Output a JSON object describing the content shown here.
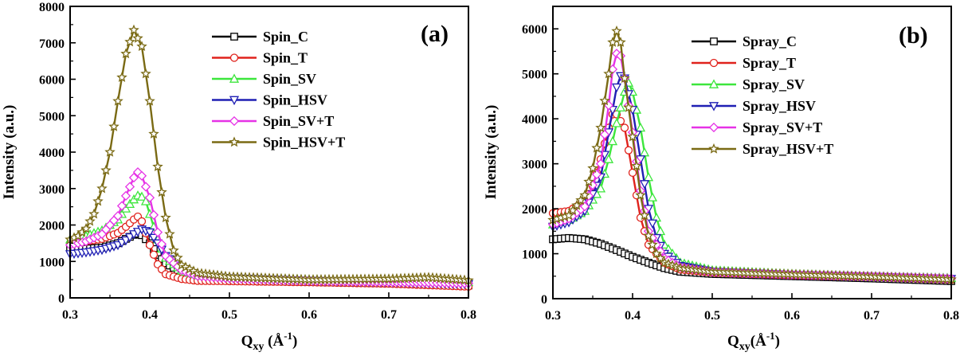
{
  "chart_data": [
    {
      "type": "line",
      "panel_label": "(a)",
      "xlabel_main": "Q",
      "xlabel_sub": "xy",
      "xlabel_unit_open": " (Å",
      "xlabel_unit_sup": "-1",
      "xlabel_unit_close": ")",
      "ylabel": "Intensity (a.u.)",
      "xlim": [
        0.3,
        0.8
      ],
      "ylim": [
        0,
        8000
      ],
      "xticks": [
        "0.3",
        "0.4",
        "0.5",
        "0.6",
        "0.7",
        "0.8"
      ],
      "yticks": [
        "0",
        "1000",
        "2000",
        "3000",
        "4000",
        "5000",
        "6000",
        "7000",
        "8000"
      ],
      "legend_position": "top-right",
      "grid": false,
      "series": [
        {
          "name": "Spin_C",
          "color": "#000000",
          "marker": "square",
          "points": [
            [
              0.3,
              1350
            ],
            [
              0.32,
              1350
            ],
            [
              0.34,
              1380
            ],
            [
              0.36,
              1500
            ],
            [
              0.37,
              1620
            ],
            [
              0.38,
              1730
            ],
            [
              0.385,
              1760
            ],
            [
              0.39,
              1720
            ],
            [
              0.4,
              1500
            ],
            [
              0.41,
              1180
            ],
            [
              0.42,
              950
            ],
            [
              0.44,
              700
            ],
            [
              0.46,
              580
            ],
            [
              0.5,
              500
            ],
            [
              0.6,
              440
            ],
            [
              0.7,
              400
            ],
            [
              0.8,
              340
            ]
          ]
        },
        {
          "name": "Spin_T",
          "color": "#e0221c",
          "marker": "circle",
          "points": [
            [
              0.3,
              1500
            ],
            [
              0.32,
              1550
            ],
            [
              0.34,
              1620
            ],
            [
              0.36,
              1780
            ],
            [
              0.37,
              1950
            ],
            [
              0.38,
              2150
            ],
            [
              0.385,
              2230
            ],
            [
              0.39,
              2100
            ],
            [
              0.4,
              1450
            ],
            [
              0.41,
              920
            ],
            [
              0.42,
              650
            ],
            [
              0.44,
              520
            ],
            [
              0.46,
              470
            ],
            [
              0.5,
              460
            ],
            [
              0.6,
              430
            ],
            [
              0.7,
              390
            ],
            [
              0.8,
              310
            ]
          ]
        },
        {
          "name": "Spin_SV",
          "color": "#3ce63c",
          "marker": "triangle-up",
          "points": [
            [
              0.3,
              1600
            ],
            [
              0.32,
              1700
            ],
            [
              0.34,
              1850
            ],
            [
              0.36,
              2150
            ],
            [
              0.37,
              2450
            ],
            [
              0.38,
              2700
            ],
            [
              0.387,
              2850
            ],
            [
              0.395,
              2650
            ],
            [
              0.4,
              2300
            ],
            [
              0.41,
              1600
            ],
            [
              0.42,
              1100
            ],
            [
              0.44,
              750
            ],
            [
              0.46,
              620
            ],
            [
              0.5,
              560
            ],
            [
              0.6,
              500
            ],
            [
              0.7,
              460
            ],
            [
              0.8,
              430
            ]
          ]
        },
        {
          "name": "Spin_HSV",
          "color": "#1f1fb4",
          "marker": "triangle-down",
          "points": [
            [
              0.3,
              1200
            ],
            [
              0.32,
              1250
            ],
            [
              0.34,
              1320
            ],
            [
              0.36,
              1450
            ],
            [
              0.37,
              1580
            ],
            [
              0.38,
              1750
            ],
            [
              0.39,
              1880
            ],
            [
              0.4,
              1800
            ],
            [
              0.41,
              1500
            ],
            [
              0.42,
              1150
            ],
            [
              0.44,
              800
            ],
            [
              0.46,
              620
            ],
            [
              0.5,
              540
            ],
            [
              0.6,
              470
            ],
            [
              0.7,
              430
            ],
            [
              0.8,
              380
            ]
          ]
        },
        {
          "name": "Spin_SV+T",
          "color": "#e632e6",
          "marker": "diamond",
          "points": [
            [
              0.3,
              1450
            ],
            [
              0.32,
              1550
            ],
            [
              0.34,
              1750
            ],
            [
              0.36,
              2250
            ],
            [
              0.37,
              2800
            ],
            [
              0.38,
              3300
            ],
            [
              0.385,
              3450
            ],
            [
              0.39,
              3350
            ],
            [
              0.4,
              2750
            ],
            [
              0.41,
              1800
            ],
            [
              0.42,
              1150
            ],
            [
              0.44,
              760
            ],
            [
              0.46,
              600
            ],
            [
              0.5,
              540
            ],
            [
              0.6,
              480
            ],
            [
              0.7,
              440
            ],
            [
              0.8,
              400
            ]
          ]
        },
        {
          "name": "Spin_HSV+T",
          "color": "#7a6a14",
          "marker": "star",
          "points": [
            [
              0.3,
              1600
            ],
            [
              0.31,
              1700
            ],
            [
              0.32,
              1900
            ],
            [
              0.33,
              2300
            ],
            [
              0.34,
              3000
            ],
            [
              0.35,
              4000
            ],
            [
              0.36,
              5400
            ],
            [
              0.37,
              6700
            ],
            [
              0.38,
              7350
            ],
            [
              0.39,
              6900
            ],
            [
              0.4,
              5400
            ],
            [
              0.41,
              3600
            ],
            [
              0.42,
              2200
            ],
            [
              0.43,
              1300
            ],
            [
              0.44,
              900
            ],
            [
              0.46,
              680
            ],
            [
              0.5,
              580
            ],
            [
              0.6,
              500
            ],
            [
              0.7,
              520
            ],
            [
              0.75,
              560
            ],
            [
              0.8,
              480
            ]
          ]
        }
      ]
    },
    {
      "type": "line",
      "panel_label": "(b)",
      "xlabel_main": "Q",
      "xlabel_sub": "xy",
      "xlabel_unit_open": "(Å",
      "xlabel_unit_sup": "-1",
      "xlabel_unit_close": ")",
      "ylabel": "Intensity (a.u.)",
      "xlim": [
        0.3,
        0.8
      ],
      "ylim": [
        0,
        6500
      ],
      "xticks": [
        "0.3",
        "0.4",
        "0.5",
        "0.6",
        "0.7",
        "0.8"
      ],
      "yticks": [
        "0",
        "1000",
        "2000",
        "3000",
        "4000",
        "5000",
        "6000"
      ],
      "legend_position": "top-right",
      "grid": false,
      "series": [
        {
          "name": "Spray_C",
          "color": "#000000",
          "marker": "square",
          "points": [
            [
              0.3,
              1320
            ],
            [
              0.32,
              1350
            ],
            [
              0.34,
              1320
            ],
            [
              0.36,
              1220
            ],
            [
              0.38,
              1080
            ],
            [
              0.4,
              930
            ],
            [
              0.42,
              800
            ],
            [
              0.44,
              680
            ],
            [
              0.46,
              600
            ],
            [
              0.5,
              550
            ],
            [
              0.6,
              500
            ],
            [
              0.7,
              450
            ],
            [
              0.8,
              390
            ]
          ]
        },
        {
          "name": "Spray_T",
          "color": "#e0221c",
          "marker": "circle",
          "points": [
            [
              0.3,
              1900
            ],
            [
              0.32,
              1950
            ],
            [
              0.34,
              2150
            ],
            [
              0.35,
              2500
            ],
            [
              0.36,
              3100
            ],
            [
              0.37,
              3800
            ],
            [
              0.375,
              4100
            ],
            [
              0.38,
              4100
            ],
            [
              0.39,
              3800
            ],
            [
              0.4,
              2800
            ],
            [
              0.41,
              1800
            ],
            [
              0.42,
              1200
            ],
            [
              0.44,
              800
            ],
            [
              0.46,
              650
            ],
            [
              0.5,
              580
            ],
            [
              0.6,
              520
            ],
            [
              0.7,
              480
            ],
            [
              0.8,
              420
            ]
          ]
        },
        {
          "name": "Spray_SV",
          "color": "#3ce63c",
          "marker": "triangle-up",
          "points": [
            [
              0.3,
              1650
            ],
            [
              0.32,
              1750
            ],
            [
              0.34,
              1950
            ],
            [
              0.36,
              2450
            ],
            [
              0.37,
              3100
            ],
            [
              0.38,
              3900
            ],
            [
              0.39,
              4600
            ],
            [
              0.395,
              4800
            ],
            [
              0.4,
              4600
            ],
            [
              0.41,
              3800
            ],
            [
              0.42,
              2700
            ],
            [
              0.43,
              1800
            ],
            [
              0.44,
              1200
            ],
            [
              0.46,
              800
            ],
            [
              0.5,
              630
            ],
            [
              0.6,
              550
            ],
            [
              0.7,
              500
            ],
            [
              0.8,
              460
            ]
          ]
        },
        {
          "name": "Spray_HSV",
          "color": "#1f1fb4",
          "marker": "triangle-down",
          "points": [
            [
              0.3,
              1600
            ],
            [
              0.32,
              1700
            ],
            [
              0.34,
              1950
            ],
            [
              0.36,
              2700
            ],
            [
              0.37,
              3700
            ],
            [
              0.38,
              4700
            ],
            [
              0.385,
              4950
            ],
            [
              0.39,
              4900
            ],
            [
              0.4,
              4200
            ],
            [
              0.41,
              3100
            ],
            [
              0.42,
              2000
            ],
            [
              0.43,
              1350
            ],
            [
              0.44,
              1000
            ],
            [
              0.46,
              730
            ],
            [
              0.5,
              600
            ],
            [
              0.6,
              530
            ],
            [
              0.7,
              490
            ],
            [
              0.8,
              440
            ]
          ]
        },
        {
          "name": "Spray_SV+T",
          "color": "#e632e6",
          "marker": "diamond",
          "points": [
            [
              0.3,
              1650
            ],
            [
              0.32,
              1780
            ],
            [
              0.34,
              2050
            ],
            [
              0.36,
              3000
            ],
            [
              0.37,
              4300
            ],
            [
              0.375,
              5100
            ],
            [
              0.38,
              5450
            ],
            [
              0.385,
              5400
            ],
            [
              0.39,
              4900
            ],
            [
              0.4,
              3700
            ],
            [
              0.41,
              2400
            ],
            [
              0.42,
              1500
            ],
            [
              0.44,
              900
            ],
            [
              0.46,
              700
            ],
            [
              0.5,
              600
            ],
            [
              0.6,
              540
            ],
            [
              0.7,
              500
            ],
            [
              0.8,
              450
            ]
          ]
        },
        {
          "name": "Spray_HSV+T",
          "color": "#7a6a14",
          "marker": "star",
          "points": [
            [
              0.3,
              1750
            ],
            [
              0.32,
              1850
            ],
            [
              0.34,
              2300
            ],
            [
              0.35,
              2900
            ],
            [
              0.36,
              3800
            ],
            [
              0.37,
              5000
            ],
            [
              0.375,
              5700
            ],
            [
              0.38,
              5950
            ],
            [
              0.385,
              5700
            ],
            [
              0.39,
              4900
            ],
            [
              0.4,
              3600
            ],
            [
              0.41,
              2300
            ],
            [
              0.42,
              1400
            ],
            [
              0.43,
              1000
            ],
            [
              0.44,
              800
            ],
            [
              0.46,
              680
            ],
            [
              0.5,
              600
            ],
            [
              0.6,
              540
            ],
            [
              0.7,
              490
            ],
            [
              0.8,
              430
            ]
          ]
        }
      ]
    }
  ]
}
